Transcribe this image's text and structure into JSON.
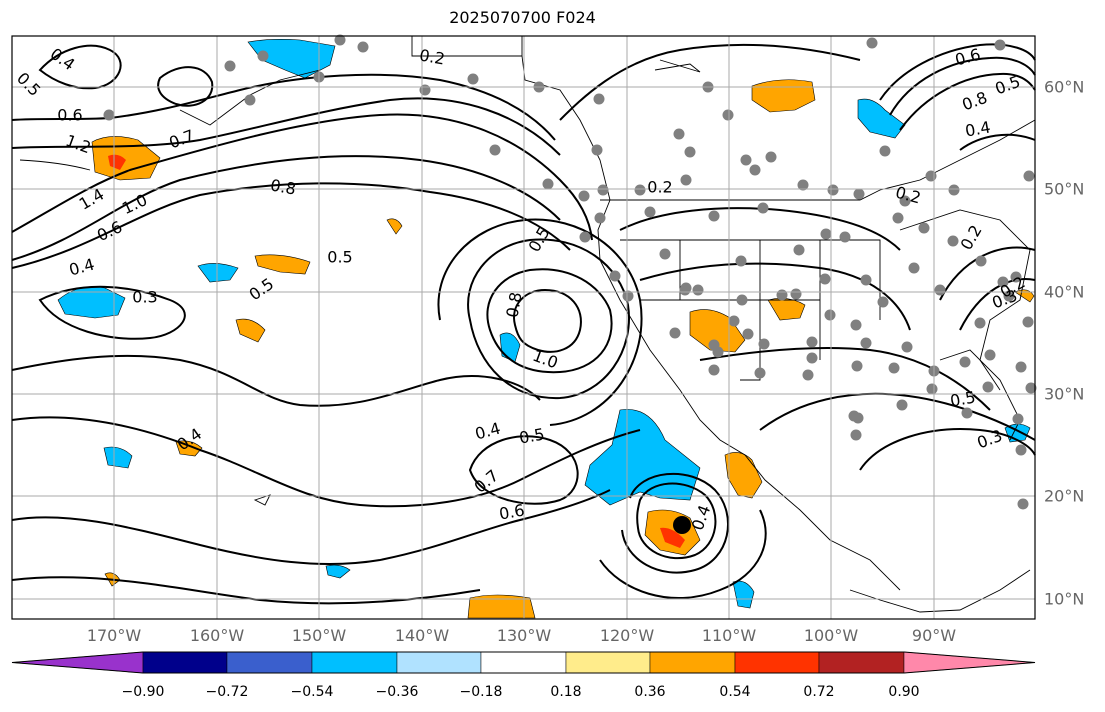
{
  "title": "2025070700 F024",
  "map": {
    "lon_labels": [
      "170°W",
      "160°W",
      "150°W",
      "140°W",
      "130°W",
      "120°W",
      "110°W",
      "100°W",
      "90°W"
    ],
    "lat_labels": [
      "60°N",
      "50°N",
      "40°N",
      "30°N",
      "20°N",
      "10°N"
    ],
    "contour_labels": [
      "0.4",
      "0.5",
      "0.6",
      "1.2",
      "1.4",
      "1.0",
      "0.6",
      "0.4",
      "0.3",
      "0.8",
      "0.5",
      "0.5",
      "0.7",
      "0.2",
      "0.2",
      "0.2",
      "0.5",
      "0.8",
      "1.0",
      "0.4",
      "0.5",
      "0.7",
      "0.6",
      "0.4",
      "0.3",
      "0.5",
      "0.3",
      "0.2",
      "0.5",
      "0.8",
      "0.6",
      "0.4",
      "0.2",
      "0.4"
    ],
    "colors": {
      "contour": "#000000",
      "station": "#808080",
      "storm_center": "#000000"
    }
  },
  "colorbar": {
    "ticks": [
      "−0.90",
      "−0.72",
      "−0.54",
      "−0.36",
      "−0.18",
      "0.18",
      "0.36",
      "0.54",
      "0.72",
      "0.90"
    ],
    "colors": [
      "#9932cc",
      "#00008b",
      "#3a5fcd",
      "#00bfff",
      "#b0e2ff",
      "#ffffff",
      "#ffec8b",
      "#ffa500",
      "#ff3300",
      "#b22222",
      "#ff88aa"
    ]
  }
}
